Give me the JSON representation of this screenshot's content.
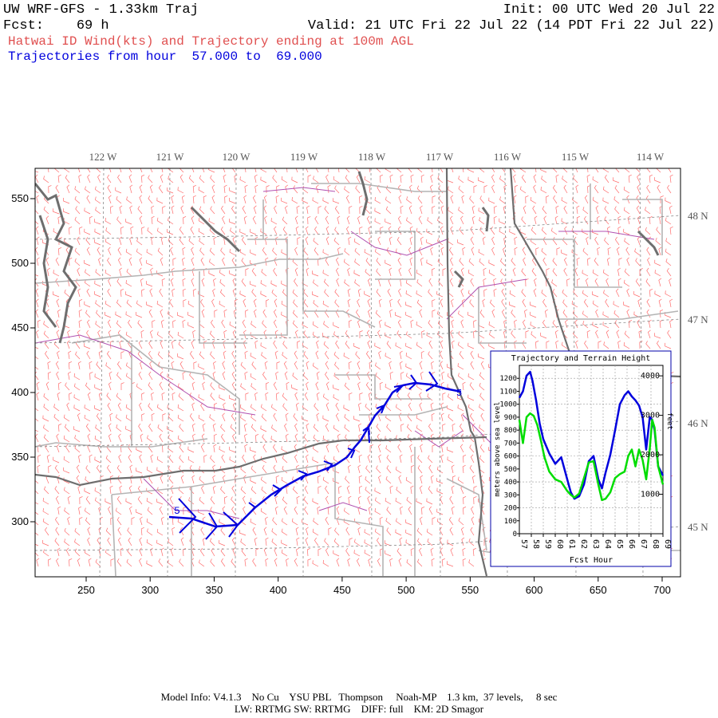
{
  "header": {
    "model": "UW WRF-GFS - 1.33km Traj",
    "init": "Init: 00 UTC Wed 20 Jul 22",
    "fcst_label": "Fcst:",
    "fcst_value": "69 h",
    "valid": "Valid: 21 UTC Fri 22 Jul 22 (14 PDT Fri 22 Jul 22)",
    "title": "Hatwai ID Wind(kts) and Trajectory ending at 100m AGL",
    "traj_prefix": "Trajectories from hour",
    "traj_from": "57.000",
    "traj_to_word": "to",
    "traj_to": "69.000"
  },
  "map": {
    "lon_labels": [
      "122 W",
      "121 W",
      "120 W",
      "119 W",
      "118 W",
      "117 W",
      "116 W",
      "115 W",
      "114 W"
    ],
    "lat_labels": [
      "48 N",
      "47 N",
      "46 N",
      "45 N"
    ],
    "x_ticks": [
      250,
      300,
      350,
      400,
      450,
      500,
      550,
      600,
      650,
      700
    ],
    "y_ticks": [
      550,
      500,
      450,
      400,
      350,
      300
    ],
    "traj_start_label": "5",
    "traj_end_label": "5",
    "colors": {
      "barbs": "#ff6b6b",
      "trajectory": "#0000dd",
      "states": "#6e6e6e",
      "counties": "#b4b4b4",
      "water": "#b050b0",
      "title_red": "#e05050",
      "traj_blue": "#0000dd"
    }
  },
  "inset": {
    "title": "Trajectory and Terrain Height",
    "ylabel_left": "meters above sea level",
    "ylabel_right": "feet",
    "xlabel": "Fcst Hour",
    "meters_ticks": [
      0,
      100,
      200,
      300,
      400,
      500,
      600,
      700,
      800,
      900,
      1000,
      1100,
      1200
    ],
    "feet_ticks": [
      1000,
      2000,
      3000,
      4000
    ],
    "hour_ticks": [
      57,
      58,
      59,
      60,
      61,
      62,
      63,
      64,
      65,
      66,
      67,
      68,
      69
    ]
  },
  "chart_data": {
    "type": "line",
    "title": "Trajectory and Terrain Height",
    "xlabel": "Fcst Hour",
    "ylabel": "meters above sea level",
    "ylabel_right": "feet",
    "xlim": [
      57,
      69
    ],
    "ylim": [
      0,
      1300
    ],
    "grid": true,
    "series": [
      {
        "color": "#0000dd",
        "x": [
          57.0,
          57.3,
          57.6,
          57.9,
          58.1,
          58.4,
          58.7,
          59.0,
          59.5,
          60.0,
          60.5,
          61.0,
          61.3,
          61.6,
          62.0,
          62.4,
          62.8,
          63.2,
          63.6,
          63.9,
          64.2,
          64.6,
          65.0,
          65.4,
          65.8,
          66.1,
          66.4,
          66.7,
          67.0,
          67.3,
          67.6,
          67.9,
          68.1,
          68.3,
          68.6,
          69.0
        ],
        "y": [
          1050,
          1100,
          1220,
          1250,
          1180,
          1030,
          850,
          730,
          620,
          540,
          590,
          420,
          320,
          270,
          290,
          380,
          560,
          600,
          420,
          350,
          470,
          610,
          800,
          1000,
          1070,
          1100,
          1060,
          1030,
          990,
          900,
          650,
          900,
          880,
          800,
          520,
          450
        ]
      },
      {
        "color": "#00dd00",
        "x": [
          57.0,
          57.3,
          57.6,
          57.9,
          58.2,
          58.5,
          58.8,
          59.1,
          59.5,
          60.0,
          60.5,
          61.0,
          61.3,
          61.6,
          62.0,
          62.4,
          62.8,
          63.2,
          63.6,
          63.9,
          64.2,
          64.6,
          65.0,
          65.4,
          65.8,
          66.1,
          66.4,
          66.7,
          67.0,
          67.3,
          67.6,
          67.9,
          68.1,
          68.3,
          68.6,
          69.0
        ],
        "y": [
          880,
          700,
          900,
          930,
          910,
          840,
          720,
          590,
          480,
          420,
          400,
          330,
          300,
          280,
          310,
          430,
          550,
          560,
          380,
          260,
          270,
          320,
          430,
          460,
          480,
          600,
          650,
          520,
          650,
          570,
          420,
          660,
          880,
          820,
          520,
          380
        ]
      }
    ]
  },
  "footer": {
    "line1": "Model Info: V4.1.3    No Cu    YSU PBL   Thompson     Noah-MP    1.3 km,  37 levels,     8 sec",
    "line2": "LW: RRTMG SW: RRTMG    DIFF: full    KM: 2D Smagor"
  }
}
